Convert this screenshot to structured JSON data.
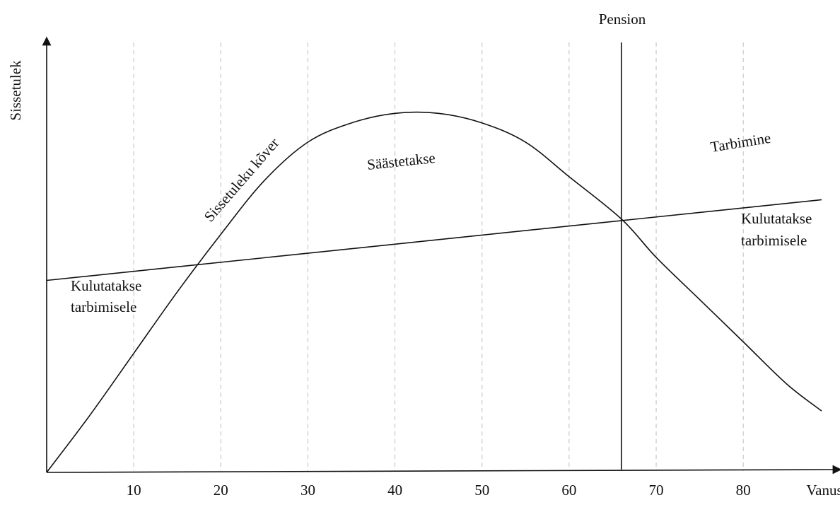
{
  "chart_data": {
    "type": "line",
    "title": "",
    "xlabel": "Vanus",
    "ylabel": "Sissetulek",
    "x_ticks": [
      "10",
      "20",
      "30",
      "40",
      "50",
      "60",
      "70",
      "80"
    ],
    "xlim": [
      0,
      89
    ],
    "ylim": [
      0,
      100
    ],
    "grid": "vertical dashed lines at each age tick",
    "retirement_label": "Pension",
    "retirement_age": 66,
    "series": [
      {
        "name": "Sissetuleku kõver",
        "x": [
          0,
          5,
          10,
          15,
          20,
          25,
          30,
          35,
          40,
          45,
          50,
          55,
          60,
          66,
          70,
          75,
          80,
          85,
          89
        ],
        "y": [
          0,
          15,
          31,
          47,
          62,
          76,
          86,
          91,
          93.5,
          93.5,
          91,
          86,
          77,
          66,
          56,
          45,
          34,
          23,
          16
        ]
      },
      {
        "name": "Tarbimine",
        "x": [
          0,
          89
        ],
        "y": [
          50,
          71
        ]
      }
    ],
    "annotations": {
      "income_curve": "Sissetuleku kõver",
      "consumption": "Tarbimine",
      "saving": "Säästetakse",
      "spent_left": [
        "Kulutatakse",
        "tarbimisele"
      ],
      "spent_right": [
        "Kulutatakse",
        "tarbimisele"
      ]
    }
  }
}
